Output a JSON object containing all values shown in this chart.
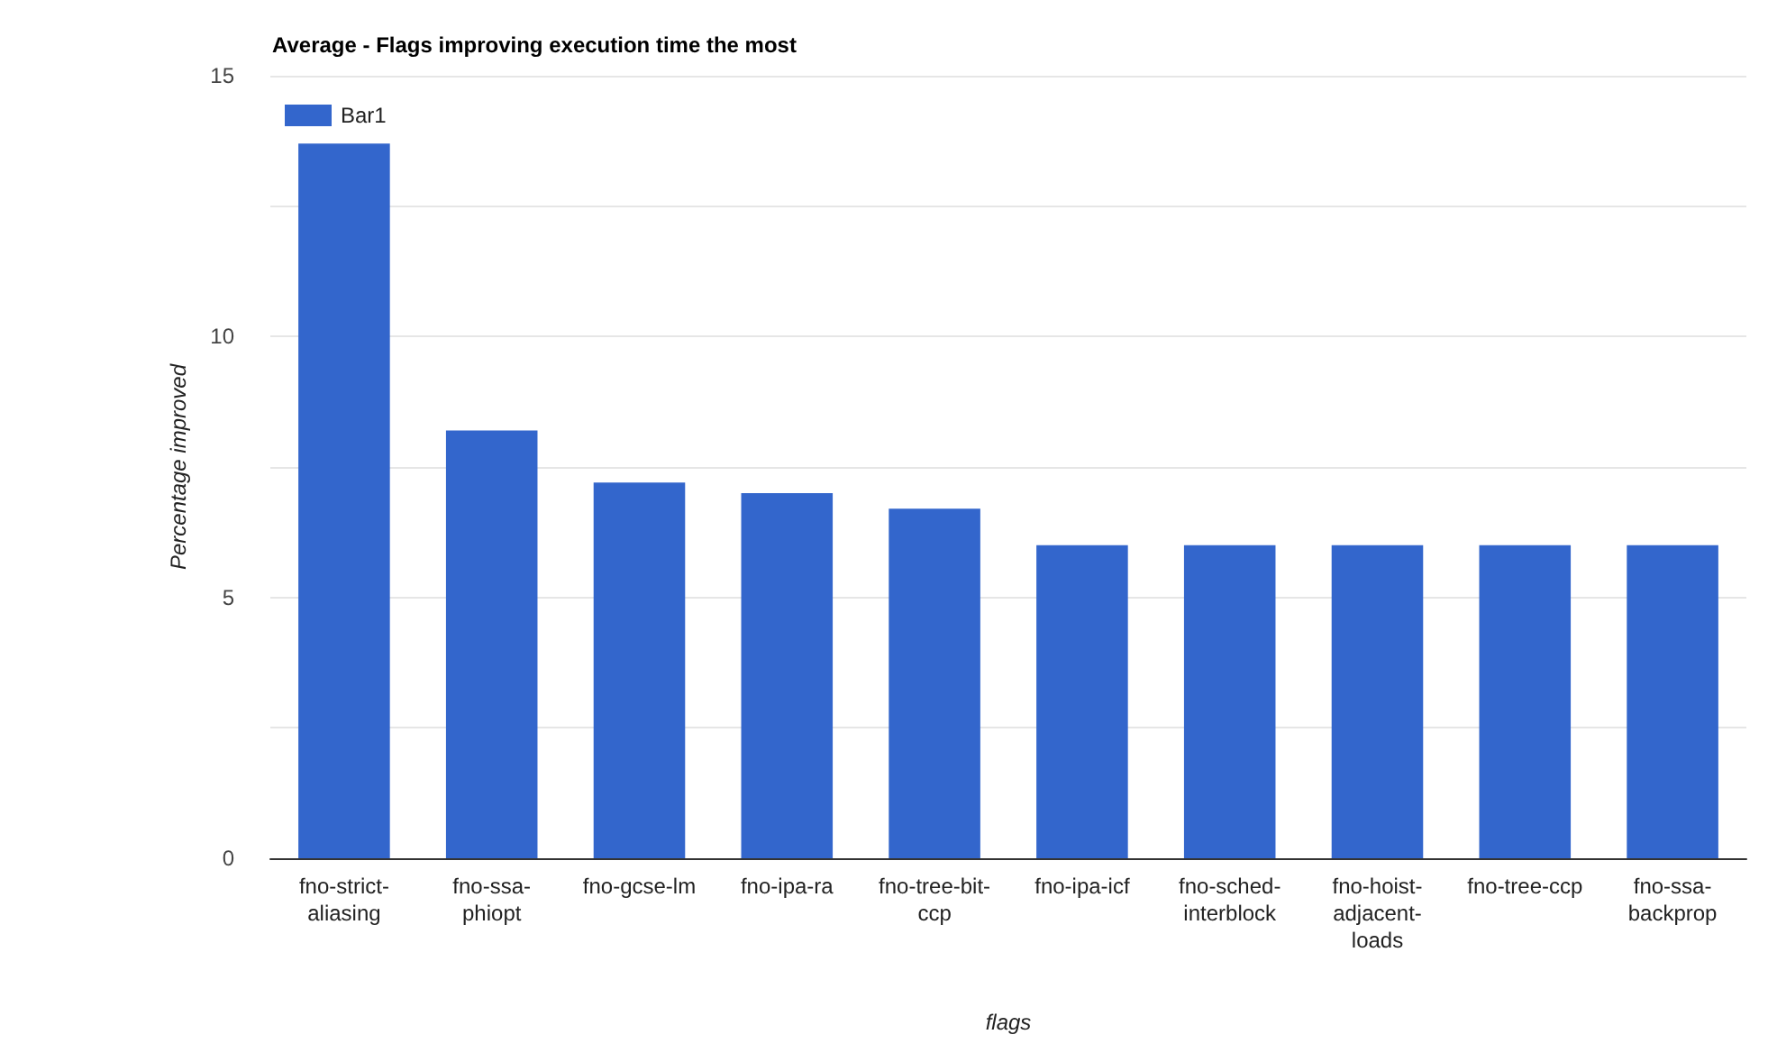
{
  "chart_data": {
    "type": "bar",
    "title": "Average - Flags improving execution time the most",
    "xlabel": "flags",
    "ylabel": "Percentage improved",
    "categories": [
      "fno-strict-aliasing",
      "fno-ssa-phiopt",
      "fno-gcse-lm",
      "fno-ipa-ra",
      "fno-tree-bit-ccp",
      "fno-ipa-icf",
      "fno-sched-interblock",
      "fno-hoist-adjacent-loads",
      "fno-tree-ccp",
      "fno-ssa-backprop"
    ],
    "series": [
      {
        "name": "Bar1",
        "color": "#3366cc",
        "values": [
          13.7,
          8.2,
          7.2,
          7.0,
          6.7,
          6.0,
          6.0,
          6.0,
          6.0,
          6.0
        ]
      }
    ],
    "ylim": [
      0,
      15
    ],
    "yticks": [
      0,
      {
        "value": 2.5,
        "label": null
      },
      5,
      {
        "value": 7.5,
        "label": null
      },
      10,
      {
        "value": 12.5,
        "label": null
      },
      15
    ],
    "grid": true,
    "legend": "top left"
  }
}
